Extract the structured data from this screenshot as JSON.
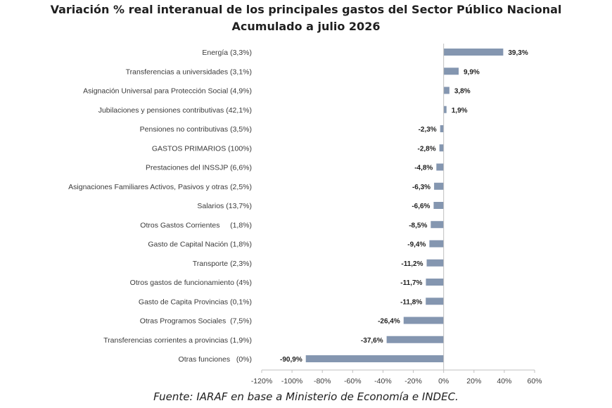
{
  "chart_data": {
    "type": "bar",
    "orientation": "horizontal",
    "title": "Variación % real interanual de los principales gastos del Sector Público Nacional",
    "subtitle": "Acumulado a julio 2026",
    "source": "Fuente: IARAF en base a Ministerio de Economía e INDEC.",
    "categories": [
      "Energía (3,3%)",
      "Transferencias a universidades (3,1%)",
      "Asignación Universal para Protección Social (4,9%)",
      "Jubilaciones y pensiones contributivas (42,1%)",
      "Pensiones no contributivas (3,5%)",
      "GASTOS PRIMARIOS (100%)",
      "Prestaciones del INSSJP (6,6%)",
      "Asignaciones Familiares Activos, Pasivos y otras (2,5%)",
      "Salarios (13,7%)",
      "Otros Gastos Corrientes     (1,8%)",
      "Gasto de Capital Nación (1,8%)",
      "Transporte (2,3%)",
      "Otros gastos de funcionamiento (4%)",
      "Gasto de Capita Provincias (0,1%)",
      "Otras Programos Sociales  (7,5%)",
      "Transferencias corrientes a provincias (1,9%)",
      "Otras funciones   (0%)"
    ],
    "values": [
      39.3,
      9.9,
      3.8,
      1.9,
      -2.3,
      -2.8,
      -4.8,
      -6.3,
      -6.6,
      -8.5,
      -9.4,
      -11.2,
      -11.7,
      -11.8,
      -26.4,
      -37.6,
      -90.9
    ],
    "value_labels": [
      "39,3%",
      "9,9%",
      "3,8%",
      "1,9%",
      "-2,3%",
      "-2,8%",
      "-4,8%",
      "-6,3%",
      "-6,6%",
      "-8,5%",
      "-9,4%",
      "-11,2%",
      "-11,7%",
      "-11,8%",
      "-26,4%",
      "-37,6%",
      "-90,9%"
    ],
    "xlim": [
      -120,
      60
    ],
    "x_ticks": [
      -120,
      -100,
      -80,
      -60,
      -40,
      -20,
      0,
      20,
      40,
      60
    ],
    "x_tick_labels": [
      "-120%",
      "-100%",
      "-80%",
      "-60%",
      "-40%",
      "-20%",
      "0%",
      "20%",
      "40%",
      "60%"
    ],
    "xlabel": "",
    "ylabel": "",
    "grid": false,
    "legend": "none",
    "bar_color": "#8496b0",
    "axis_color": "#bfbfbf"
  }
}
